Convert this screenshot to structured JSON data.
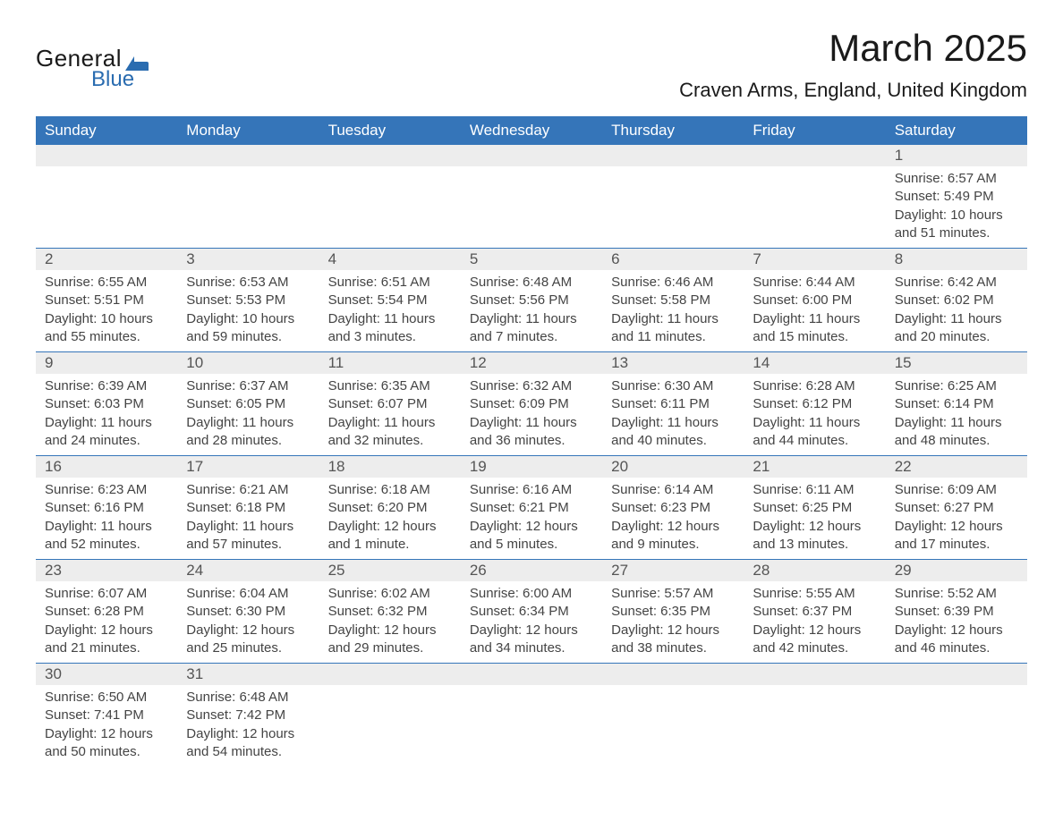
{
  "logo": {
    "word1": "General",
    "word2": "Blue"
  },
  "title": "March 2025",
  "location": "Craven Arms, England, United Kingdom",
  "colors": {
    "header_bg": "#3575b9",
    "header_text": "#ffffff",
    "daynum_bg": "#ededed",
    "daynum_border": "#3575b9",
    "body_text": "#444444",
    "title_text": "#1a1a1a",
    "logo_accent": "#2a6cb0"
  },
  "typography": {
    "title_fontsize": 42,
    "location_fontsize": 22,
    "header_fontsize": 17,
    "cell_fontsize": 15
  },
  "day_headers": [
    "Sunday",
    "Monday",
    "Tuesday",
    "Wednesday",
    "Thursday",
    "Friday",
    "Saturday"
  ],
  "weeks": [
    [
      null,
      null,
      null,
      null,
      null,
      null,
      {
        "n": "1",
        "sr": "Sunrise: 6:57 AM",
        "ss": "Sunset: 5:49 PM",
        "d1": "Daylight: 10 hours",
        "d2": "and 51 minutes."
      }
    ],
    [
      {
        "n": "2",
        "sr": "Sunrise: 6:55 AM",
        "ss": "Sunset: 5:51 PM",
        "d1": "Daylight: 10 hours",
        "d2": "and 55 minutes."
      },
      {
        "n": "3",
        "sr": "Sunrise: 6:53 AM",
        "ss": "Sunset: 5:53 PM",
        "d1": "Daylight: 10 hours",
        "d2": "and 59 minutes."
      },
      {
        "n": "4",
        "sr": "Sunrise: 6:51 AM",
        "ss": "Sunset: 5:54 PM",
        "d1": "Daylight: 11 hours",
        "d2": "and 3 minutes."
      },
      {
        "n": "5",
        "sr": "Sunrise: 6:48 AM",
        "ss": "Sunset: 5:56 PM",
        "d1": "Daylight: 11 hours",
        "d2": "and 7 minutes."
      },
      {
        "n": "6",
        "sr": "Sunrise: 6:46 AM",
        "ss": "Sunset: 5:58 PM",
        "d1": "Daylight: 11 hours",
        "d2": "and 11 minutes."
      },
      {
        "n": "7",
        "sr": "Sunrise: 6:44 AM",
        "ss": "Sunset: 6:00 PM",
        "d1": "Daylight: 11 hours",
        "d2": "and 15 minutes."
      },
      {
        "n": "8",
        "sr": "Sunrise: 6:42 AM",
        "ss": "Sunset: 6:02 PM",
        "d1": "Daylight: 11 hours",
        "d2": "and 20 minutes."
      }
    ],
    [
      {
        "n": "9",
        "sr": "Sunrise: 6:39 AM",
        "ss": "Sunset: 6:03 PM",
        "d1": "Daylight: 11 hours",
        "d2": "and 24 minutes."
      },
      {
        "n": "10",
        "sr": "Sunrise: 6:37 AM",
        "ss": "Sunset: 6:05 PM",
        "d1": "Daylight: 11 hours",
        "d2": "and 28 minutes."
      },
      {
        "n": "11",
        "sr": "Sunrise: 6:35 AM",
        "ss": "Sunset: 6:07 PM",
        "d1": "Daylight: 11 hours",
        "d2": "and 32 minutes."
      },
      {
        "n": "12",
        "sr": "Sunrise: 6:32 AM",
        "ss": "Sunset: 6:09 PM",
        "d1": "Daylight: 11 hours",
        "d2": "and 36 minutes."
      },
      {
        "n": "13",
        "sr": "Sunrise: 6:30 AM",
        "ss": "Sunset: 6:11 PM",
        "d1": "Daylight: 11 hours",
        "d2": "and 40 minutes."
      },
      {
        "n": "14",
        "sr": "Sunrise: 6:28 AM",
        "ss": "Sunset: 6:12 PM",
        "d1": "Daylight: 11 hours",
        "d2": "and 44 minutes."
      },
      {
        "n": "15",
        "sr": "Sunrise: 6:25 AM",
        "ss": "Sunset: 6:14 PM",
        "d1": "Daylight: 11 hours",
        "d2": "and 48 minutes."
      }
    ],
    [
      {
        "n": "16",
        "sr": "Sunrise: 6:23 AM",
        "ss": "Sunset: 6:16 PM",
        "d1": "Daylight: 11 hours",
        "d2": "and 52 minutes."
      },
      {
        "n": "17",
        "sr": "Sunrise: 6:21 AM",
        "ss": "Sunset: 6:18 PM",
        "d1": "Daylight: 11 hours",
        "d2": "and 57 minutes."
      },
      {
        "n": "18",
        "sr": "Sunrise: 6:18 AM",
        "ss": "Sunset: 6:20 PM",
        "d1": "Daylight: 12 hours",
        "d2": "and 1 minute."
      },
      {
        "n": "19",
        "sr": "Sunrise: 6:16 AM",
        "ss": "Sunset: 6:21 PM",
        "d1": "Daylight: 12 hours",
        "d2": "and 5 minutes."
      },
      {
        "n": "20",
        "sr": "Sunrise: 6:14 AM",
        "ss": "Sunset: 6:23 PM",
        "d1": "Daylight: 12 hours",
        "d2": "and 9 minutes."
      },
      {
        "n": "21",
        "sr": "Sunrise: 6:11 AM",
        "ss": "Sunset: 6:25 PM",
        "d1": "Daylight: 12 hours",
        "d2": "and 13 minutes."
      },
      {
        "n": "22",
        "sr": "Sunrise: 6:09 AM",
        "ss": "Sunset: 6:27 PM",
        "d1": "Daylight: 12 hours",
        "d2": "and 17 minutes."
      }
    ],
    [
      {
        "n": "23",
        "sr": "Sunrise: 6:07 AM",
        "ss": "Sunset: 6:28 PM",
        "d1": "Daylight: 12 hours",
        "d2": "and 21 minutes."
      },
      {
        "n": "24",
        "sr": "Sunrise: 6:04 AM",
        "ss": "Sunset: 6:30 PM",
        "d1": "Daylight: 12 hours",
        "d2": "and 25 minutes."
      },
      {
        "n": "25",
        "sr": "Sunrise: 6:02 AM",
        "ss": "Sunset: 6:32 PM",
        "d1": "Daylight: 12 hours",
        "d2": "and 29 minutes."
      },
      {
        "n": "26",
        "sr": "Sunrise: 6:00 AM",
        "ss": "Sunset: 6:34 PM",
        "d1": "Daylight: 12 hours",
        "d2": "and 34 minutes."
      },
      {
        "n": "27",
        "sr": "Sunrise: 5:57 AM",
        "ss": "Sunset: 6:35 PM",
        "d1": "Daylight: 12 hours",
        "d2": "and 38 minutes."
      },
      {
        "n": "28",
        "sr": "Sunrise: 5:55 AM",
        "ss": "Sunset: 6:37 PM",
        "d1": "Daylight: 12 hours",
        "d2": "and 42 minutes."
      },
      {
        "n": "29",
        "sr": "Sunrise: 5:52 AM",
        "ss": "Sunset: 6:39 PM",
        "d1": "Daylight: 12 hours",
        "d2": "and 46 minutes."
      }
    ],
    [
      {
        "n": "30",
        "sr": "Sunrise: 6:50 AM",
        "ss": "Sunset: 7:41 PM",
        "d1": "Daylight: 12 hours",
        "d2": "and 50 minutes."
      },
      {
        "n": "31",
        "sr": "Sunrise: 6:48 AM",
        "ss": "Sunset: 7:42 PM",
        "d1": "Daylight: 12 hours",
        "d2": "and 54 minutes."
      },
      null,
      null,
      null,
      null,
      null
    ]
  ]
}
